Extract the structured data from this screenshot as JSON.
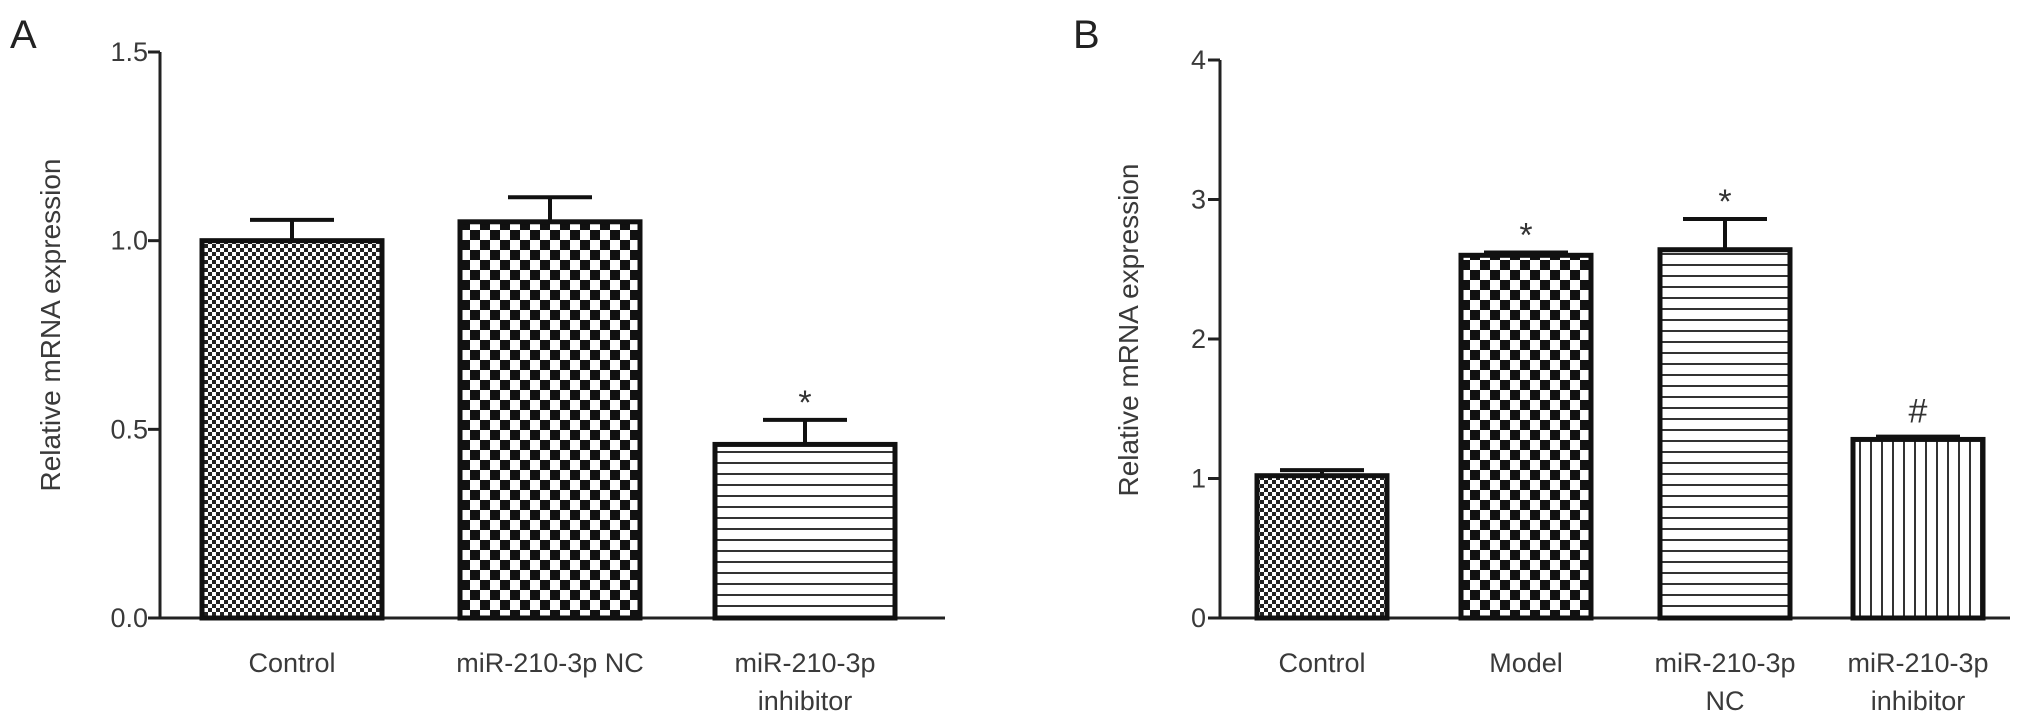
{
  "chart_data": [
    {
      "panel_label": "A",
      "type": "bar",
      "categories": [
        [
          "Control"
        ],
        [
          "miR-210-3p NC"
        ],
        [
          "miR-210-3p",
          "inhibitor"
        ]
      ],
      "values": [
        1.0,
        1.05,
        0.46
      ],
      "errors": [
        0.055,
        0.065,
        0.065
      ],
      "annotations": [
        "",
        "",
        "*"
      ],
      "patterns": [
        "fine-check",
        "checker",
        "hlines"
      ],
      "ylabel": "Relative mRNA expression",
      "ylim": [
        0,
        1.5
      ],
      "yticks": [
        0.0,
        0.5,
        1.0,
        1.5
      ],
      "ytick_labels": [
        "0.0",
        "0.5",
        "1.0",
        "1.5"
      ]
    },
    {
      "panel_label": "B",
      "type": "bar",
      "categories": [
        [
          "Control"
        ],
        [
          "Model"
        ],
        [
          "miR-210-3p",
          "NC"
        ],
        [
          "miR-210-3p",
          "inhibitor"
        ]
      ],
      "values": [
        1.02,
        2.6,
        2.64,
        1.28
      ],
      "errors": [
        0.04,
        0.02,
        0.22,
        0.02
      ],
      "annotations": [
        "",
        "*",
        "*",
        "#"
      ],
      "patterns": [
        "fine-check",
        "checker",
        "hlines",
        "vlines"
      ],
      "ylabel": "Relative mRNA expression",
      "ylim": [
        0,
        4
      ],
      "yticks": [
        0,
        1,
        2,
        3,
        4
      ],
      "ytick_labels": [
        "0",
        "1",
        "2",
        "3",
        "4"
      ]
    }
  ]
}
